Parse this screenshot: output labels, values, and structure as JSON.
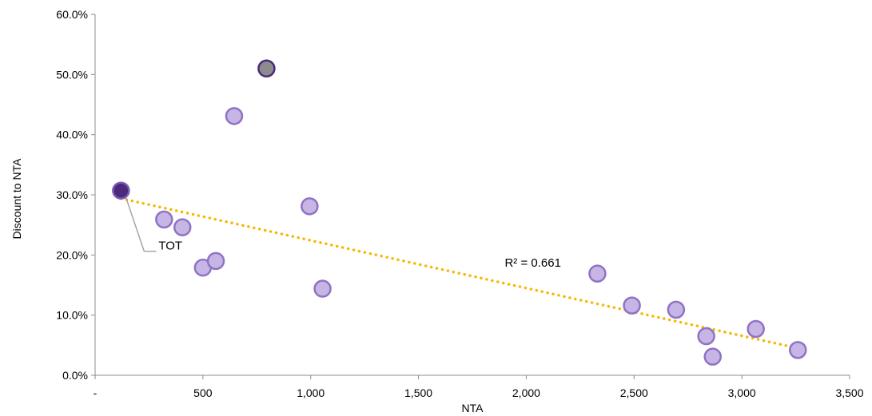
{
  "chart_data": {
    "type": "scatter",
    "title": "",
    "xlabel": "NTA",
    "ylabel": "Discount to NTA",
    "xlim": [
      0,
      3500
    ],
    "ylim": [
      0,
      0.6
    ],
    "x_ticks": [
      0,
      500,
      1000,
      1500,
      2000,
      2500,
      3000,
      3500
    ],
    "x_tick_labels": [
      "-",
      "500",
      "1,000",
      "1,500",
      "2,000",
      "2,500",
      "3,000",
      "3,500"
    ],
    "y_ticks": [
      0,
      0.1,
      0.2,
      0.3,
      0.4,
      0.5,
      0.6
    ],
    "y_tick_labels": [
      "0.0%",
      "10.0%",
      "20.0%",
      "30.0%",
      "40.0%",
      "50.0%",
      "60.0%"
    ],
    "grid": false,
    "legend": "none",
    "points": [
      {
        "x": 120,
        "y": 0.307,
        "label": "TOT",
        "style": "highlight"
      },
      {
        "x": 320,
        "y": 0.259,
        "style": "normal"
      },
      {
        "x": 405,
        "y": 0.246,
        "style": "normal"
      },
      {
        "x": 500,
        "y": 0.179,
        "style": "normal"
      },
      {
        "x": 560,
        "y": 0.19,
        "style": "normal"
      },
      {
        "x": 645,
        "y": 0.431,
        "style": "normal"
      },
      {
        "x": 795,
        "y": 0.51,
        "style": "grey"
      },
      {
        "x": 995,
        "y": 0.281,
        "style": "normal"
      },
      {
        "x": 1055,
        "y": 0.144,
        "style": "normal"
      },
      {
        "x": 2330,
        "y": 0.169,
        "style": "normal"
      },
      {
        "x": 2490,
        "y": 0.116,
        "style": "normal"
      },
      {
        "x": 2695,
        "y": 0.109,
        "style": "normal"
      },
      {
        "x": 2835,
        "y": 0.065,
        "style": "normal"
      },
      {
        "x": 2865,
        "y": 0.031,
        "style": "normal"
      },
      {
        "x": 3065,
        "y": 0.077,
        "style": "normal"
      },
      {
        "x": 3260,
        "y": 0.042,
        "style": "normal"
      }
    ],
    "trendline": {
      "type": "linear",
      "from": {
        "x": 120,
        "y": 0.294
      },
      "to": {
        "x": 3260,
        "y": 0.045
      },
      "style": "dotted",
      "color": "#F5B800"
    },
    "annotations": [
      "R² = 0.661"
    ],
    "colors": {
      "normal_fill": "#C7B5E6",
      "normal_stroke": "#8F73C4",
      "highlight_fill": "#4B2A7B",
      "highlight_stroke": "#7A5BB8",
      "grey_fill": "#8C8C8C",
      "grey_stroke": "#4B2A7B",
      "axis": "#8C8C8C",
      "leader": "#A6A6A6"
    }
  }
}
